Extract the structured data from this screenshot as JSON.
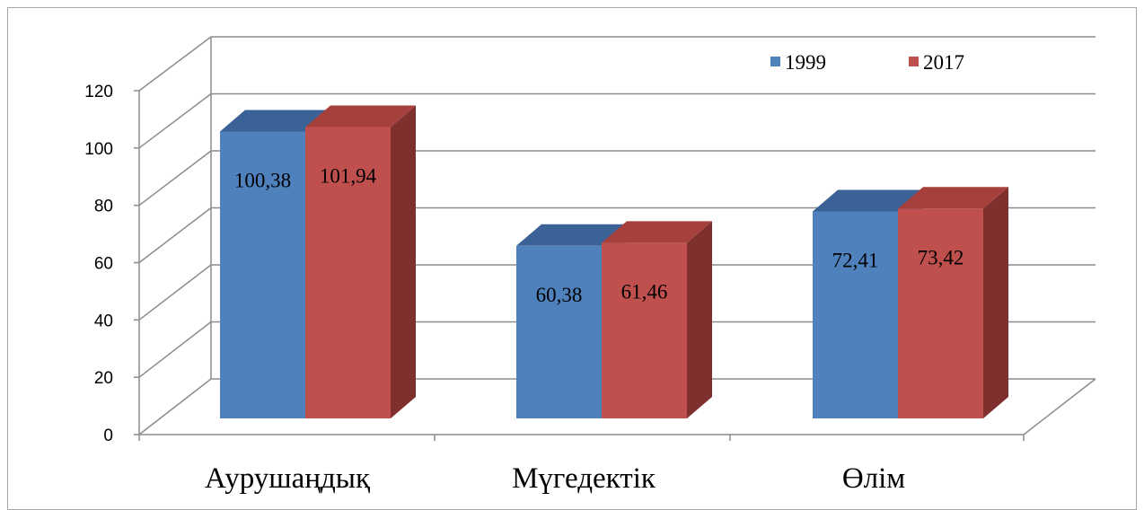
{
  "chart_data": {
    "type": "bar",
    "categories": [
      "Аурушаңдық",
      "Мүгедектік",
      "Өлім"
    ],
    "series": [
      {
        "name": "1999",
        "values": [
          100.38,
          60.38,
          72.41
        ],
        "labels": [
          "100,38",
          "60,38",
          "72,41"
        ],
        "color": "#4f81bd"
      },
      {
        "name": "2017",
        "values": [
          101.94,
          61.46,
          73.42
        ],
        "labels": [
          "101,94",
          "61,46",
          "73,42"
        ],
        "color": "#c0504d"
      }
    ],
    "y_ticks": [
      "0",
      "20",
      "40",
      "60",
      "80",
      "100",
      "120"
    ],
    "ylim": [
      0,
      120
    ],
    "grid": true,
    "legend": "top-right",
    "style": "3d-clustered-column"
  }
}
